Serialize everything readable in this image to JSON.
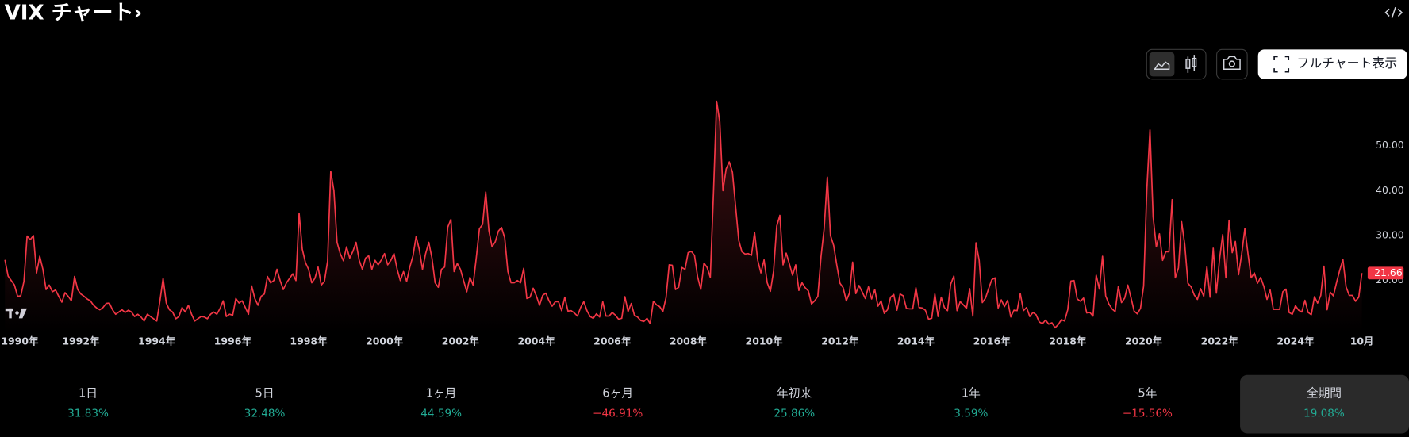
{
  "header": {
    "title": "VIX チャート›",
    "full_chart": "フルチャート表示"
  },
  "chart_data": {
    "type": "line",
    "color": "#f23645",
    "x": [
      "1990-01",
      "1990-02",
      "1990-03",
      "1990-04",
      "1990-05",
      "1990-06",
      "1990-07",
      "1990-08",
      "1990-09",
      "1990-10",
      "1990-11",
      "1990-12",
      "1991-01",
      "1991-02",
      "1991-03",
      "1991-04",
      "1991-05",
      "1991-06",
      "1991-07",
      "1991-08",
      "1991-09",
      "1991-10",
      "1991-11",
      "1991-12",
      "1992-01",
      "1992-02",
      "1992-03",
      "1992-04",
      "1992-05",
      "1992-06",
      "1992-07",
      "1992-08",
      "1992-09",
      "1992-10",
      "1992-11",
      "1992-12",
      "1993-01",
      "1993-02",
      "1993-03",
      "1993-04",
      "1993-05",
      "1993-06",
      "1993-07",
      "1993-08",
      "1993-09",
      "1993-10",
      "1993-11",
      "1993-12",
      "1994-01",
      "1994-02",
      "1994-03",
      "1994-04",
      "1994-05",
      "1994-06",
      "1994-07",
      "1994-08",
      "1994-09",
      "1994-10",
      "1994-11",
      "1994-12",
      "1995-01",
      "1995-02",
      "1995-03",
      "1995-04",
      "1995-05",
      "1995-06",
      "1995-07",
      "1995-08",
      "1995-09",
      "1995-10",
      "1995-11",
      "1995-12",
      "1996-01",
      "1996-02",
      "1996-03",
      "1996-04",
      "1996-05",
      "1996-06",
      "1996-07",
      "1996-08",
      "1996-09",
      "1996-10",
      "1996-11",
      "1996-12",
      "1997-01",
      "1997-02",
      "1997-03",
      "1997-04",
      "1997-05",
      "1997-06",
      "1997-07",
      "1997-08",
      "1997-09",
      "1997-10",
      "1997-11",
      "1997-12",
      "1998-01",
      "1998-02",
      "1998-03",
      "1998-04",
      "1998-05",
      "1998-06",
      "1998-07",
      "1998-08",
      "1998-09",
      "1998-10",
      "1998-11",
      "1998-12",
      "1999-01",
      "1999-02",
      "1999-03",
      "1999-04",
      "1999-05",
      "1999-06",
      "1999-07",
      "1999-08",
      "1999-09",
      "1999-10",
      "1999-11",
      "1999-12",
      "2000-01",
      "2000-02",
      "2000-03",
      "2000-04",
      "2000-05",
      "2000-06",
      "2000-07",
      "2000-08",
      "2000-09",
      "2000-10",
      "2000-11",
      "2000-12",
      "2001-01",
      "2001-02",
      "2001-03",
      "2001-04",
      "2001-05",
      "2001-06",
      "2001-07",
      "2001-08",
      "2001-09",
      "2001-10",
      "2001-11",
      "2001-12",
      "2002-01",
      "2002-02",
      "2002-03",
      "2002-04",
      "2002-05",
      "2002-06",
      "2002-07",
      "2002-08",
      "2002-09",
      "2002-10",
      "2002-11",
      "2002-12",
      "2003-01",
      "2003-02",
      "2003-03",
      "2003-04",
      "2003-05",
      "2003-06",
      "2003-07",
      "2003-08",
      "2003-09",
      "2003-10",
      "2003-11",
      "2003-12",
      "2004-01",
      "2004-02",
      "2004-03",
      "2004-04",
      "2004-05",
      "2004-06",
      "2004-07",
      "2004-08",
      "2004-09",
      "2004-10",
      "2004-11",
      "2004-12",
      "2005-01",
      "2005-02",
      "2005-03",
      "2005-04",
      "2005-05",
      "2005-06",
      "2005-07",
      "2005-08",
      "2005-09",
      "2005-10",
      "2005-11",
      "2005-12",
      "2006-01",
      "2006-02",
      "2006-03",
      "2006-04",
      "2006-05",
      "2006-06",
      "2006-07",
      "2006-08",
      "2006-09",
      "2006-10",
      "2006-11",
      "2006-12",
      "2007-01",
      "2007-02",
      "2007-03",
      "2007-04",
      "2007-05",
      "2007-06",
      "2007-07",
      "2007-08",
      "2007-09",
      "2007-10",
      "2007-11",
      "2007-12",
      "2008-01",
      "2008-02",
      "2008-03",
      "2008-04",
      "2008-05",
      "2008-06",
      "2008-07",
      "2008-08",
      "2008-09",
      "2008-10",
      "2008-11",
      "2008-12",
      "2009-01",
      "2009-02",
      "2009-03",
      "2009-04",
      "2009-05",
      "2009-06",
      "2009-07",
      "2009-08",
      "2009-09",
      "2009-10",
      "2009-11",
      "2009-12",
      "2010-01",
      "2010-02",
      "2010-03",
      "2010-04",
      "2010-05",
      "2010-06",
      "2010-07",
      "2010-08",
      "2010-09",
      "2010-10",
      "2010-11",
      "2010-12",
      "2011-01",
      "2011-02",
      "2011-03",
      "2011-04",
      "2011-05",
      "2011-06",
      "2011-07",
      "2011-08",
      "2011-09",
      "2011-10",
      "2011-11",
      "2011-12",
      "2012-01",
      "2012-02",
      "2012-03",
      "2012-04",
      "2012-05",
      "2012-06",
      "2012-07",
      "2012-08",
      "2012-09",
      "2012-10",
      "2012-11",
      "2012-12",
      "2013-01",
      "2013-02",
      "2013-03",
      "2013-04",
      "2013-05",
      "2013-06",
      "2013-07",
      "2013-08",
      "2013-09",
      "2013-10",
      "2013-11",
      "2013-12",
      "2014-01",
      "2014-02",
      "2014-03",
      "2014-04",
      "2014-05",
      "2014-06",
      "2014-07",
      "2014-08",
      "2014-09",
      "2014-10",
      "2014-11",
      "2014-12",
      "2015-01",
      "2015-02",
      "2015-03",
      "2015-04",
      "2015-05",
      "2015-06",
      "2015-07",
      "2015-08",
      "2015-09",
      "2015-10",
      "2015-11",
      "2015-12",
      "2016-01",
      "2016-02",
      "2016-03",
      "2016-04",
      "2016-05",
      "2016-06",
      "2016-07",
      "2016-08",
      "2016-09",
      "2016-10",
      "2016-11",
      "2016-12",
      "2017-01",
      "2017-02",
      "2017-03",
      "2017-04",
      "2017-05",
      "2017-06",
      "2017-07",
      "2017-08",
      "2017-09",
      "2017-10",
      "2017-11",
      "2017-12",
      "2018-01",
      "2018-02",
      "2018-03",
      "2018-04",
      "2018-05",
      "2018-06",
      "2018-07",
      "2018-08",
      "2018-09",
      "2018-10",
      "2018-11",
      "2018-12",
      "2019-01",
      "2019-02",
      "2019-03",
      "2019-04",
      "2019-05",
      "2019-06",
      "2019-07",
      "2019-08",
      "2019-09",
      "2019-10",
      "2019-11",
      "2019-12",
      "2020-01",
      "2020-02",
      "2020-03",
      "2020-04",
      "2020-05",
      "2020-06",
      "2020-07",
      "2020-08",
      "2020-09",
      "2020-10",
      "2020-11",
      "2020-12",
      "2021-01",
      "2021-02",
      "2021-03",
      "2021-04",
      "2021-05",
      "2021-06",
      "2021-07",
      "2021-08",
      "2021-09",
      "2021-10",
      "2021-11",
      "2021-12",
      "2022-01",
      "2022-02",
      "2022-03",
      "2022-04",
      "2022-05",
      "2022-06",
      "2022-07",
      "2022-08",
      "2022-09",
      "2022-10",
      "2022-11",
      "2022-12",
      "2023-01",
      "2023-02",
      "2023-03",
      "2023-04",
      "2023-05",
      "2023-06",
      "2023-07",
      "2023-08",
      "2023-09",
      "2023-10",
      "2023-11",
      "2023-12",
      "2024-01",
      "2024-02",
      "2024-03",
      "2024-04",
      "2024-05",
      "2024-06",
      "2024-07",
      "2024-08",
      "2024-09",
      "2024-10",
      "2024-11",
      "2024-12",
      "2025-01",
      "2025-02",
      "2025-03",
      "2025-04",
      "2025-05",
      "2025-06",
      "2025-07",
      "2025-08",
      "2025-09",
      "2025-10"
    ],
    "values": [
      24.6,
      21.0,
      20.0,
      19.0,
      16.5,
      16.6,
      19.8,
      29.9,
      29.1,
      30.0,
      21.7,
      25.4,
      22.5,
      18.0,
      19.0,
      17.5,
      17.9,
      16.5,
      15.2,
      17.3,
      16.5,
      15.5,
      20.9,
      18.0,
      17.0,
      16.5,
      15.9,
      15.5,
      14.5,
      13.9,
      13.5,
      14.0,
      14.9,
      15.0,
      13.5,
      12.5,
      13.0,
      13.5,
      12.9,
      13.4,
      13.0,
      12.0,
      12.5,
      11.9,
      11.0,
      12.5,
      12.0,
      11.5,
      11.0,
      15.5,
      20.5,
      15.0,
      13.5,
      13.0,
      11.5,
      12.0,
      14.0,
      13.0,
      14.5,
      12.5,
      11.0,
      11.5,
      12.0,
      11.9,
      11.5,
      12.5,
      13.0,
      12.5,
      13.8,
      15.5,
      12.0,
      12.5,
      12.3,
      16.0,
      15.0,
      15.5,
      14.0,
      12.5,
      18.8,
      16.0,
      14.5,
      16.5,
      17.0,
      20.9,
      19.5,
      20.0,
      22.5,
      20.0,
      18.0,
      19.5,
      20.5,
      21.5,
      20.0,
      35.0,
      27.0,
      24.0,
      22.5,
      19.5,
      20.5,
      23.0,
      19.0,
      19.8,
      24.3,
      44.3,
      40.0,
      28.5,
      26.0,
      24.4,
      27.5,
      25.0,
      26.5,
      28.5,
      24.5,
      22.5,
      25.0,
      25.5,
      22.5,
      24.5,
      23.5,
      24.6,
      26.0,
      23.5,
      24.5,
      26.0,
      22.5,
      20.0,
      22.0,
      19.8,
      23.0,
      25.5,
      29.8,
      26.9,
      22.5,
      26.0,
      28.5,
      25.0,
      19.5,
      18.5,
      22.5,
      23.0,
      31.9,
      33.6,
      22.0,
      23.8,
      22.5,
      20.0,
      17.5,
      20.7,
      19.0,
      25.0,
      31.5,
      32.5,
      39.7,
      31.1,
      27.5,
      28.6,
      31.0,
      31.8,
      29.5,
      22.0,
      19.5,
      19.5,
      20.0,
      19.5,
      22.7,
      16.0,
      16.3,
      18.3,
      16.6,
      14.5,
      16.7,
      17.2,
      15.5,
      14.3,
      15.3,
      15.3,
      13.3,
      16.3,
      13.2,
      13.3,
      12.8,
      12.1,
      14.0,
      15.3,
      13.3,
      12.0,
      11.6,
      12.6,
      11.9,
      15.3,
      12.1,
      12.1,
      12.9,
      12.3,
      11.4,
      11.6,
      16.4,
      13.1,
      14.9,
      12.3,
      11.9,
      11.1,
      10.9,
      11.6,
      10.4,
      15.4,
      14.6,
      14.2,
      13.1,
      16.2,
      23.5,
      23.4,
      18.0,
      18.5,
      22.9,
      22.5,
      26.2,
      26.5,
      25.6,
      20.8,
      18.0,
      23.9,
      22.9,
      20.7,
      39.4,
      59.9,
      55.3,
      40.0,
      44.8,
      46.4,
      44.1,
      36.5,
      28.9,
      26.4,
      25.9,
      26.0,
      25.6,
      30.7,
      24.5,
      21.7,
      24.6,
      19.5,
      17.6,
      22.1,
      32.1,
      34.5,
      23.5,
      26.1,
      23.7,
      21.2,
      23.5,
      17.8,
      19.5,
      18.4,
      17.7,
      14.8,
      15.5,
      16.5,
      25.3,
      31.6,
      43.0,
      30.0,
      27.8,
      23.4,
      19.4,
      18.4,
      15.5,
      17.2,
      24.1,
      17.1,
      18.9,
      17.5,
      16.0,
      18.6,
      15.9,
      18.0,
      14.3,
      15.5,
      12.7,
      13.5,
      16.3,
      16.9,
      13.4,
      17.0,
      16.6,
      13.8,
      13.7,
      13.7,
      18.4,
      14.0,
      13.9,
      13.4,
      11.4,
      11.6,
      17.0,
      12.0,
      16.3,
      14.0,
      13.3,
      19.2,
      21.0,
      13.3,
      15.3,
      14.6,
      13.8,
      18.2,
      12.1,
      28.4,
      24.5,
      15.1,
      16.1,
      18.2,
      20.2,
      20.6,
      13.9,
      15.7,
      14.2,
      15.6,
      11.9,
      13.4,
      13.3,
      17.1,
      13.3,
      14.0,
      12.0,
      12.9,
      12.4,
      10.8,
      10.4,
      11.2,
      10.3,
      10.6,
      9.5,
      10.2,
      11.3,
      11.0,
      13.5,
      19.9,
      20.0,
      15.9,
      15.4,
      16.1,
      12.8,
      12.9,
      12.1,
      21.2,
      18.1,
      25.4,
      16.6,
      14.8,
      13.7,
      13.1,
      18.7,
      15.1,
      16.1,
      19.0,
      16.2,
      13.2,
      12.6,
      13.8,
      18.8,
      40.1,
      53.5,
      34.2,
      27.5,
      30.4,
      24.5,
      26.4,
      26.4,
      38.0,
      20.6,
      22.8,
      33.1,
      28.0,
      19.4,
      18.6,
      16.8,
      15.8,
      18.2,
      16.5,
      23.1,
      16.3,
      27.2,
      17.2,
      24.8,
      30.2,
      20.6,
      33.4,
      26.2,
      28.7,
      21.3,
      25.9,
      31.6,
      25.9,
      20.6,
      21.7,
      19.4,
      20.7,
      18.7,
      15.8,
      17.9,
      13.6,
      13.6,
      13.6,
      17.5,
      18.1,
      12.9,
      12.5,
      14.4,
      13.4,
      13.0,
      15.6,
      12.9,
      12.4,
      16.4,
      15.0,
      16.7,
      23.2,
      13.5,
      17.4,
      16.6,
      19.6,
      22.3,
      24.7,
      18.6,
      16.7,
      16.7,
      15.4,
      16.3,
      21.66
    ],
    "ylim": [
      8.4,
      62.4
    ],
    "yticks": [
      {
        "value": 20,
        "label": "20.00"
      },
      {
        "value": 30,
        "label": "30.00"
      },
      {
        "value": 40,
        "label": "40.00"
      },
      {
        "value": 50,
        "label": "50.00"
      }
    ],
    "xticks": [
      {
        "value": "1990-01",
        "label": "1990年"
      },
      {
        "value": "1992-01",
        "label": "1992年"
      },
      {
        "value": "1994-01",
        "label": "1994年"
      },
      {
        "value": "1996-01",
        "label": "1996年"
      },
      {
        "value": "1998-01",
        "label": "1998年"
      },
      {
        "value": "2000-01",
        "label": "2000年"
      },
      {
        "value": "2002-01",
        "label": "2002年"
      },
      {
        "value": "2004-01",
        "label": "2004年"
      },
      {
        "value": "2006-01",
        "label": "2006年"
      },
      {
        "value": "2008-01",
        "label": "2008年"
      },
      {
        "value": "2010-01",
        "label": "2010年"
      },
      {
        "value": "2012-01",
        "label": "2012年"
      },
      {
        "value": "2014-01",
        "label": "2014年"
      },
      {
        "value": "2016-01",
        "label": "2016年"
      },
      {
        "value": "2018-01",
        "label": "2018年"
      },
      {
        "value": "2020-01",
        "label": "2020年"
      },
      {
        "value": "2022-01",
        "label": "2022年"
      },
      {
        "value": "2024-01",
        "label": "2024年"
      },
      {
        "value": "2025-10",
        "label": "10月"
      }
    ],
    "grid": false
  },
  "periods": [
    {
      "label": "1日",
      "change": "31.83%",
      "color": "#22ab94"
    },
    {
      "label": "5日",
      "change": "32.48%",
      "color": "#22ab94"
    },
    {
      "label": "1ヶ月",
      "change": "44.59%",
      "color": "#22ab94"
    },
    {
      "label": "6ヶ月",
      "change": "−46.91%",
      "color": "#f23645"
    },
    {
      "label": "年初来",
      "change": "25.86%",
      "color": "#22ab94"
    },
    {
      "label": "1年",
      "change": "3.59%",
      "color": "#22ab94"
    },
    {
      "label": "5年",
      "change": "−15.56%",
      "color": "#f23645"
    },
    {
      "label": "全期間",
      "change": "19.08%",
      "color": "#22ab94",
      "selected": true
    }
  ]
}
